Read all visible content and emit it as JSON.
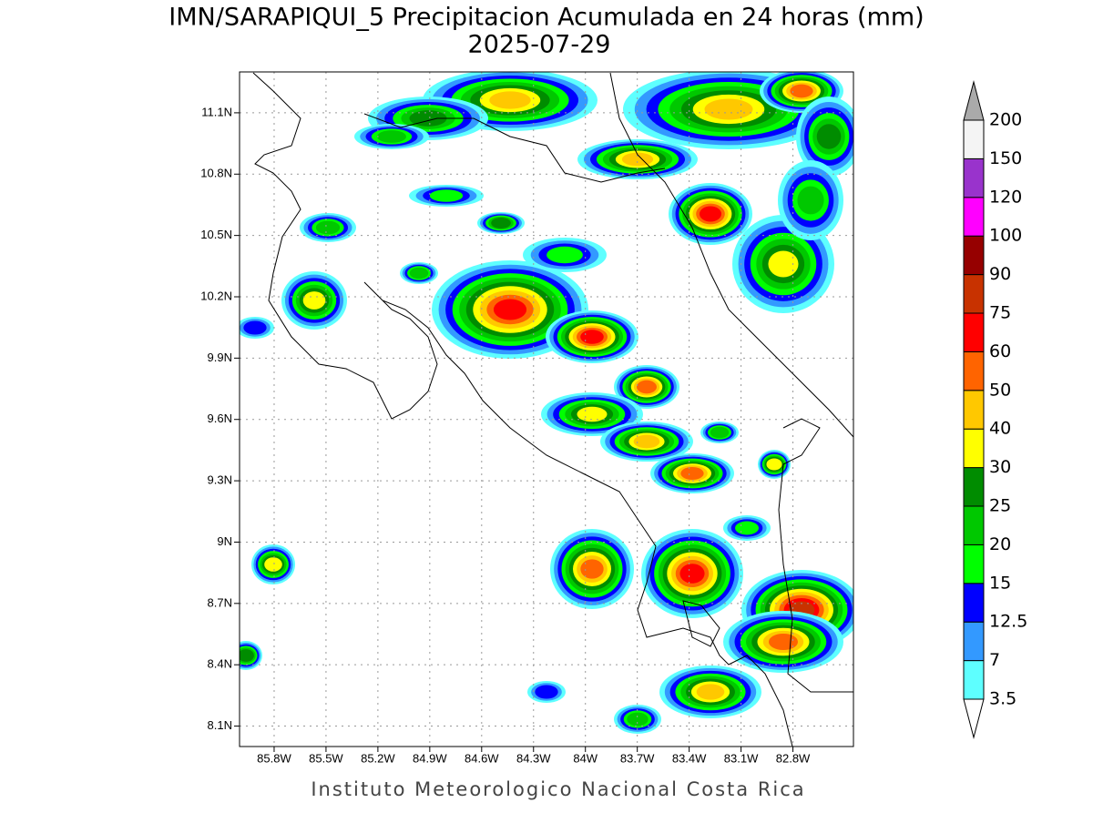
{
  "map": {
    "title": "IMN/SARAPIQUI_5 Precipitacion Acumulada en 24 horas (mm)",
    "subtitle": "2025-07-29",
    "xlim": [
      -86.0,
      -82.45
    ],
    "ylim": [
      8.0,
      11.3
    ],
    "xticks": [
      {
        "value": -85.8,
        "label": "85.8W"
      },
      {
        "value": -85.5,
        "label": "85.5W"
      },
      {
        "value": -85.2,
        "label": "85.2W"
      },
      {
        "value": -84.9,
        "label": "84.9W"
      },
      {
        "value": -84.6,
        "label": "84.6W"
      },
      {
        "value": -84.3,
        "label": "84.3W"
      },
      {
        "value": -84.0,
        "label": "84W"
      },
      {
        "value": -83.7,
        "label": "83.7W"
      },
      {
        "value": -83.4,
        "label": "83.4W"
      },
      {
        "value": -83.1,
        "label": "83.1W"
      },
      {
        "value": -82.8,
        "label": "82.8W"
      }
    ],
    "yticks": [
      {
        "value": 8.1,
        "label": "8.1N"
      },
      {
        "value": 8.4,
        "label": "8.4N"
      },
      {
        "value": 8.7,
        "label": "8.7N"
      },
      {
        "value": 9.0,
        "label": "9N"
      },
      {
        "value": 9.3,
        "label": "9.3N"
      },
      {
        "value": 9.6,
        "label": "9.6N"
      },
      {
        "value": 9.9,
        "label": "9.9N"
      },
      {
        "value": 10.2,
        "label": "10.2N"
      },
      {
        "value": 10.5,
        "label": "10.5N"
      },
      {
        "value": 10.8,
        "label": "10.8N"
      },
      {
        "value": 11.1,
        "label": "11.1N"
      }
    ],
    "grid": true,
    "colorbar": {
      "levels": [
        3.5,
        7,
        12.5,
        15,
        20,
        25,
        30,
        40,
        50,
        60,
        75,
        90,
        100,
        120,
        150,
        200
      ],
      "colors": [
        "#5effff",
        "#3399ff",
        "#0000ff",
        "#00ff00",
        "#00c800",
        "#008c00",
        "#ffff00",
        "#ffc800",
        "#ff6400",
        "#ff0000",
        "#c83200",
        "#960000",
        "#ff00ff",
        "#9933cc",
        "#f4f4f4"
      ],
      "under_color": "#ffffff",
      "over_color": "#aaaaaa"
    },
    "footer": "Instituto Meteorologico Nacional Costa Rica"
  }
}
